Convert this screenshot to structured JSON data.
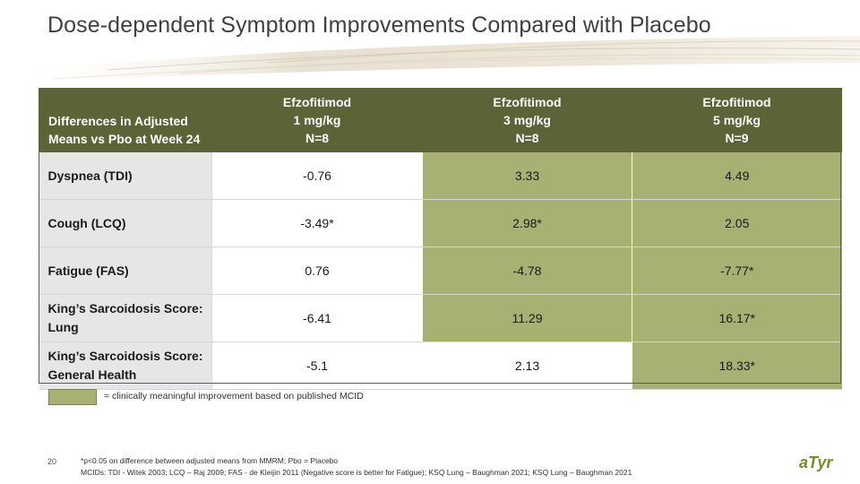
{
  "title": "Dose-dependent Symptom Improvements Compared with Placebo",
  "table": {
    "corner_header": [
      "Differences in Adjusted",
      "Means vs Pbo at Week 24"
    ],
    "columns": [
      {
        "line1": "Efzofitimod",
        "line2": "1 mg/kg",
        "line3": "N=8"
      },
      {
        "line1": "Efzofitimod",
        "line2": "3 mg/kg",
        "line3": "N=8"
      },
      {
        "line1": "Efzofitimod",
        "line2": "5 mg/kg",
        "line3": "N=9"
      }
    ],
    "rows": [
      {
        "label": "Dyspnea (TDI)",
        "cells": [
          "-0.76",
          "3.33",
          "4.49"
        ],
        "highlight": [
          false,
          true,
          true
        ]
      },
      {
        "label": "Cough (LCQ)",
        "cells": [
          "-3.49*",
          "2.98*",
          "2.05"
        ],
        "highlight": [
          false,
          true,
          true
        ]
      },
      {
        "label": "Fatigue (FAS)",
        "cells": [
          "0.76",
          "-4.78",
          "-7.77*"
        ],
        "highlight": [
          false,
          true,
          true
        ]
      },
      {
        "label": "King’s Sarcoidosis Score: Lung",
        "cells": [
          "-6.41",
          "11.29",
          "16.17*"
        ],
        "highlight": [
          false,
          true,
          true
        ]
      },
      {
        "label": "King’s Sarcoidosis Score: General Health",
        "cells": [
          "-5.1",
          "2.13",
          "18.33*"
        ],
        "highlight": [
          false,
          false,
          true
        ]
      }
    ]
  },
  "legend": {
    "text": "= clinically meaningful improvement based on published MCID",
    "color": "#a8b074"
  },
  "page_number": "20",
  "footnotes": [
    "*p<0.05 on difference between adjusted means from MMRM; Pbo = Placebo",
    "MCIDs: TDI - Witek 2003; LCQ – Raj 2009; FAS - de Kleijin 2011 (Negative score is better for Fatigue); KSQ Lung – Baughman 2021; KSQ Lung – Baughman 2021"
  ],
  "logo_text": "aTyr",
  "colors": {
    "header_bg": "#5c6337",
    "highlight": "#a8b074",
    "row_label_bg": "#e6e6e6",
    "logo": "#7a8a2e"
  }
}
